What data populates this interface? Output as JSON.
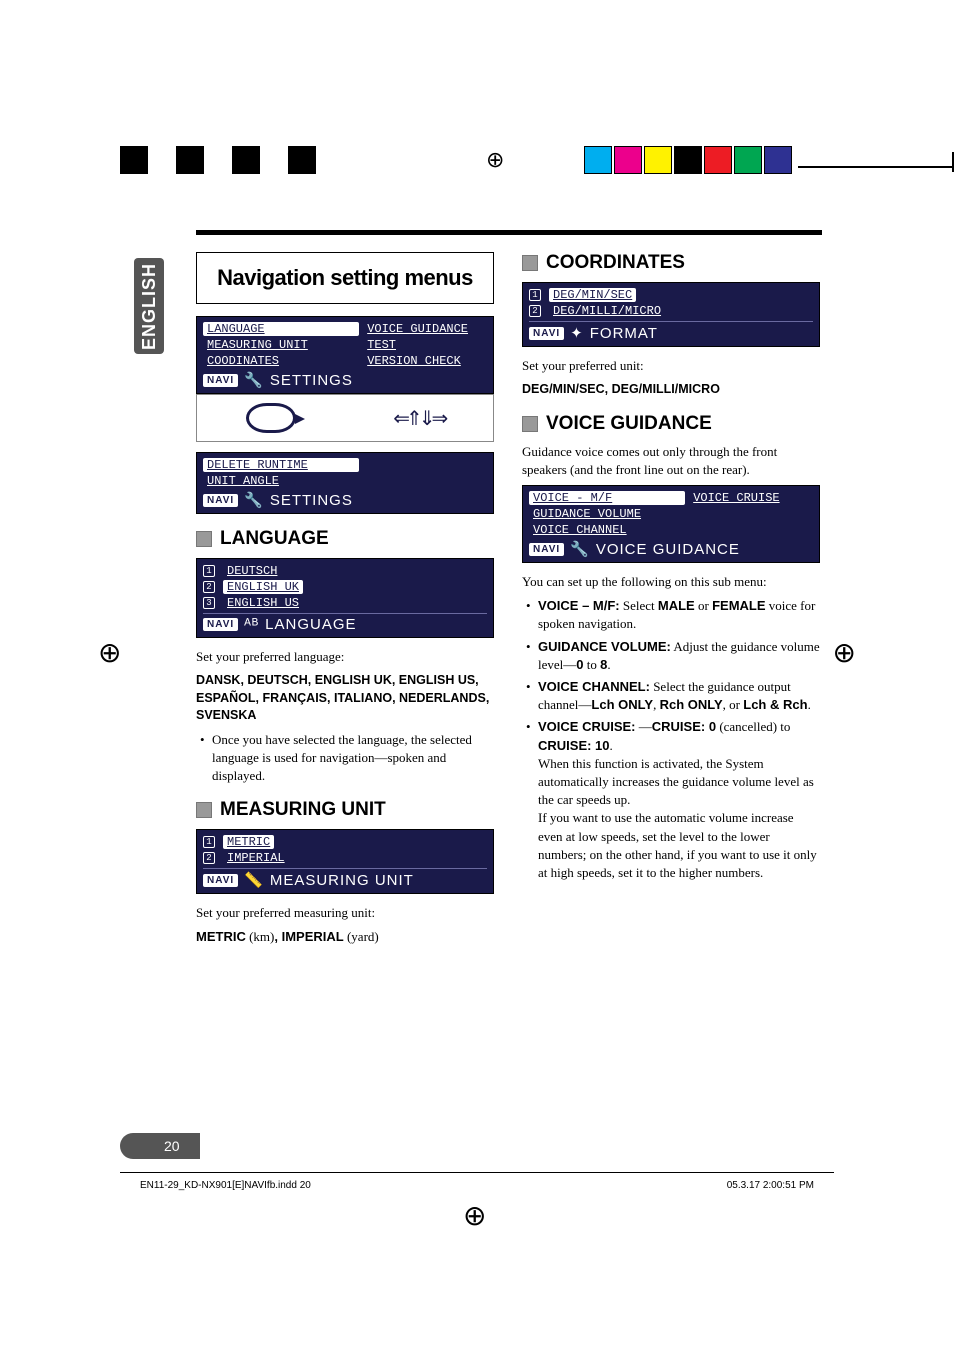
{
  "colorbar": {
    "left_swatches": [
      "#000000",
      "#ffffff",
      "#000000",
      "#ffffff",
      "#000000",
      "#ffffff",
      "#000000"
    ],
    "right_swatches": [
      "#00aeef",
      "#ec008c",
      "#fff200",
      "#000000",
      "#ed1c24",
      "#00a651",
      "#2e3192"
    ]
  },
  "side_tab": "ENGLISH",
  "title": "Navigation setting menus",
  "settings_lcd_1": {
    "rows": [
      [
        "LANGUAGE",
        "VOICE GUIDANCE"
      ],
      [
        "MEASURING UNIT",
        "TEST"
      ],
      [
        "COODINATES",
        "VERSION CHECK"
      ]
    ],
    "footer": "SETTINGS"
  },
  "settings_lcd_2": {
    "rows": [
      [
        "DELETE RUNTIME",
        ""
      ],
      [
        "UNIT ANGLE",
        ""
      ]
    ],
    "footer": "SETTINGS"
  },
  "language": {
    "heading": "LANGUAGE",
    "rows": [
      "DEUTSCH",
      "ENGLISH UK",
      "ENGLISH US"
    ],
    "selected_index": 1,
    "footer": "LANGUAGE",
    "intro": "Set your preferred language:",
    "options_bold": "DANSK, DEUTSCH, ENGLISH UK, ENGLISH US, ESPAÑOL, FRANÇAIS, ITALIANO, NEDERLANDS, SVENSKA",
    "note": "Once you have selected the language, the selected language is used for navigation—spoken and displayed."
  },
  "measuring": {
    "heading": "MEASURING UNIT",
    "rows": [
      "METRIC",
      "IMPERIAL"
    ],
    "selected_index": 0,
    "footer": "MEASURING UNIT",
    "intro": "Set your preferred measuring unit:",
    "options_line": {
      "a": "METRIC",
      "a_paren": " (km)",
      "b": ", IMPERIAL",
      "b_paren": " (yard)"
    }
  },
  "coordinates": {
    "heading": "COORDINATES",
    "rows": [
      "DEG/MIN/SEC",
      "DEG/MILLI/MICRO"
    ],
    "selected_index": 0,
    "footer": "FORMAT",
    "intro": "Set your preferred unit:",
    "options_bold": "DEG/MIN/SEC, DEG/MILLI/MICRO"
  },
  "voice": {
    "heading": "VOICE GUIDANCE",
    "intro": "Guidance voice comes out only through the front speakers (and the front line out on the rear).",
    "rows": [
      [
        "VOICE - M/F",
        "VOICE CRUISE"
      ],
      [
        "GUIDANCE VOLUME",
        ""
      ],
      [
        "VOICE CHANNEL",
        ""
      ]
    ],
    "selected": [
      0,
      0
    ],
    "footer": "VOICE GUIDANCE",
    "sub_intro": "You can set up the following on this sub menu:",
    "bullets": [
      {
        "label": "VOICE – M/F:",
        "text_pre": " Select ",
        "b1": "MALE",
        "mid": " or ",
        "b2": "FEMALE",
        "text_post": " voice for spoken navigation."
      },
      {
        "label": "GUIDANCE VOLUME:",
        "text_pre": " Adjust the guidance volume level—",
        "b1": "0",
        "mid": " to ",
        "b2": "8",
        "text_post": "."
      },
      {
        "label": "VOICE CHANNEL:",
        "text_pre": " Select the guidance output channel—",
        "b1": "Lch ONLY",
        "mid": ", ",
        "b2": "Rch ONLY",
        "mid2": ", or ",
        "b3": "Lch & Rch",
        "text_post": "."
      }
    ],
    "cruise": {
      "label": "VOICE CRUISE:",
      "dash": " —",
      "b1": "CRUISE: 0",
      "paren": " (cancelled) to ",
      "b2": "CRUISE: 10",
      "post": ".",
      "para1": "When this function is activated, the System automatically increases the guidance volume level as the car speeds up.",
      "para2": "If you want to use the automatic volume increase even at low speeds, set the level to the lower numbers; on the other hand, if you want to use it only at high speeds, set it to the higher numbers."
    }
  },
  "page_number": "20",
  "crop": {
    "file": "EN11-29_KD-NX901[E]NAVIfb.indd   20",
    "stamp": "05.3.17   2:00:51 PM"
  }
}
